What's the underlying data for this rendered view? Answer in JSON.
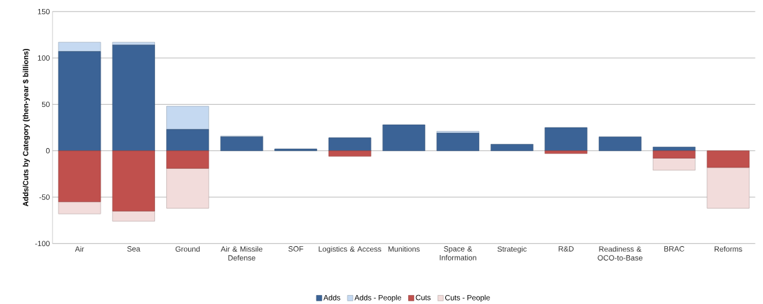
{
  "chart_data": {
    "type": "bar",
    "stacked": true,
    "ylabel": "Adds/Cuts by Category (then-year $ billions)",
    "categories": [
      "Air",
      "Sea",
      "Ground",
      "Air & Missile Defense",
      "SOF",
      "Logistics & Access",
      "Munitions",
      "Space & Information",
      "Strategic",
      "R&D",
      "Readiness & OCO-to-Base",
      "BRAC",
      "Reforms"
    ],
    "series": [
      {
        "name": "Adds",
        "color": "#3b6396",
        "values": [
          107,
          114,
          23,
          15,
          2,
          14,
          28,
          19,
          7,
          25,
          15,
          4,
          0
        ]
      },
      {
        "name": "Adds - People",
        "color": "#c5d9f1",
        "values": [
          10,
          3,
          25,
          1,
          0,
          0,
          0,
          2,
          0,
          0,
          0,
          0,
          0
        ]
      },
      {
        "name": "Cuts",
        "color": "#c0504d",
        "values": [
          -55,
          -65,
          -19,
          0,
          0,
          -6,
          0,
          0,
          0,
          -3,
          0,
          -8,
          -18
        ]
      },
      {
        "name": "Cuts - People",
        "color": "#f2dcdb",
        "values": [
          -13,
          -11,
          -43,
          0,
          0,
          0,
          0,
          0,
          0,
          0,
          0,
          -13,
          -44
        ]
      }
    ],
    "ylim": [
      -100,
      150
    ],
    "yticks": [
      -100,
      -50,
      0,
      50,
      100,
      150
    ],
    "grid": "y",
    "legend": "bottom"
  }
}
